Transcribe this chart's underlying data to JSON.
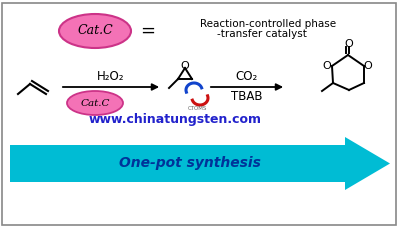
{
  "bg_color": "#ffffff",
  "border_color": "#888888",
  "arrow_color": "#00bcd4",
  "arrow_text": "One-pot synthesis",
  "arrow_text_color": "#003399",
  "catc_fill": "#f472b6",
  "catc_edge": "#cc3388",
  "catc_text": "Cat.C",
  "website": "www.chinatungsten.com",
  "website_color": "#2222cc",
  "h2o2_label": "H₂O₂",
  "co2_label": "CO₂",
  "tbab_label": "TBAB",
  "reaction_text_line1": "Reaction-controlled phase",
  "reaction_text_line2": "-transfer catalyst"
}
